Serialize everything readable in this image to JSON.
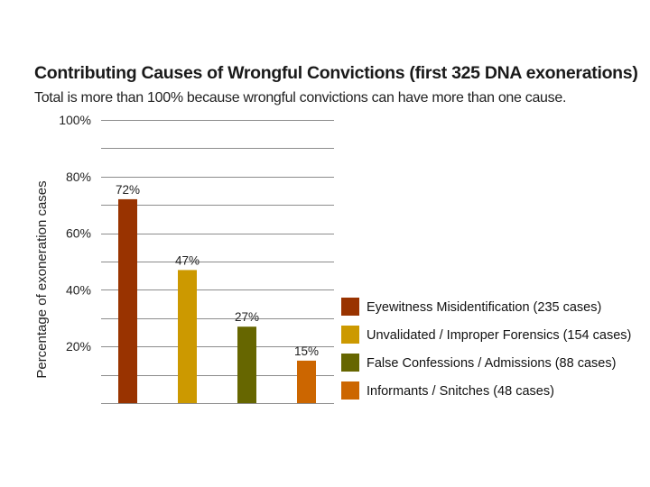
{
  "chart_data": {
    "type": "bar",
    "title": "Contributing Causes of Wrongful Convictions (first 325 DNA exonerations)",
    "subtitle": "Total is more than 100% because wrongful convictions can have more than one cause.",
    "xlabel": "",
    "ylabel": "Percentage of exoneration cases",
    "ylim": [
      0,
      100
    ],
    "y_ticks": [
      {
        "value": 20,
        "label": "20%"
      },
      {
        "value": 40,
        "label": "40%"
      },
      {
        "value": 60,
        "label": "60%"
      },
      {
        "value": 80,
        "label": "80%"
      },
      {
        "value": 100,
        "label": "100%"
      }
    ],
    "grid": true,
    "legend_position": "right",
    "categories": [
      "Eyewitness Misidentification (235 cases)",
      "Unvalidated / Improper Forensics (154 cases)",
      "False Confessions / Admissions (88 cases)",
      "Informants / Snitches (48 cases)"
    ],
    "values": [
      72,
      47,
      27,
      15
    ],
    "data_labels": [
      "72%",
      "47%",
      "27%",
      "15%"
    ],
    "colors": [
      "#993300",
      "#cc9900",
      "#666600",
      "#cc6600"
    ]
  }
}
